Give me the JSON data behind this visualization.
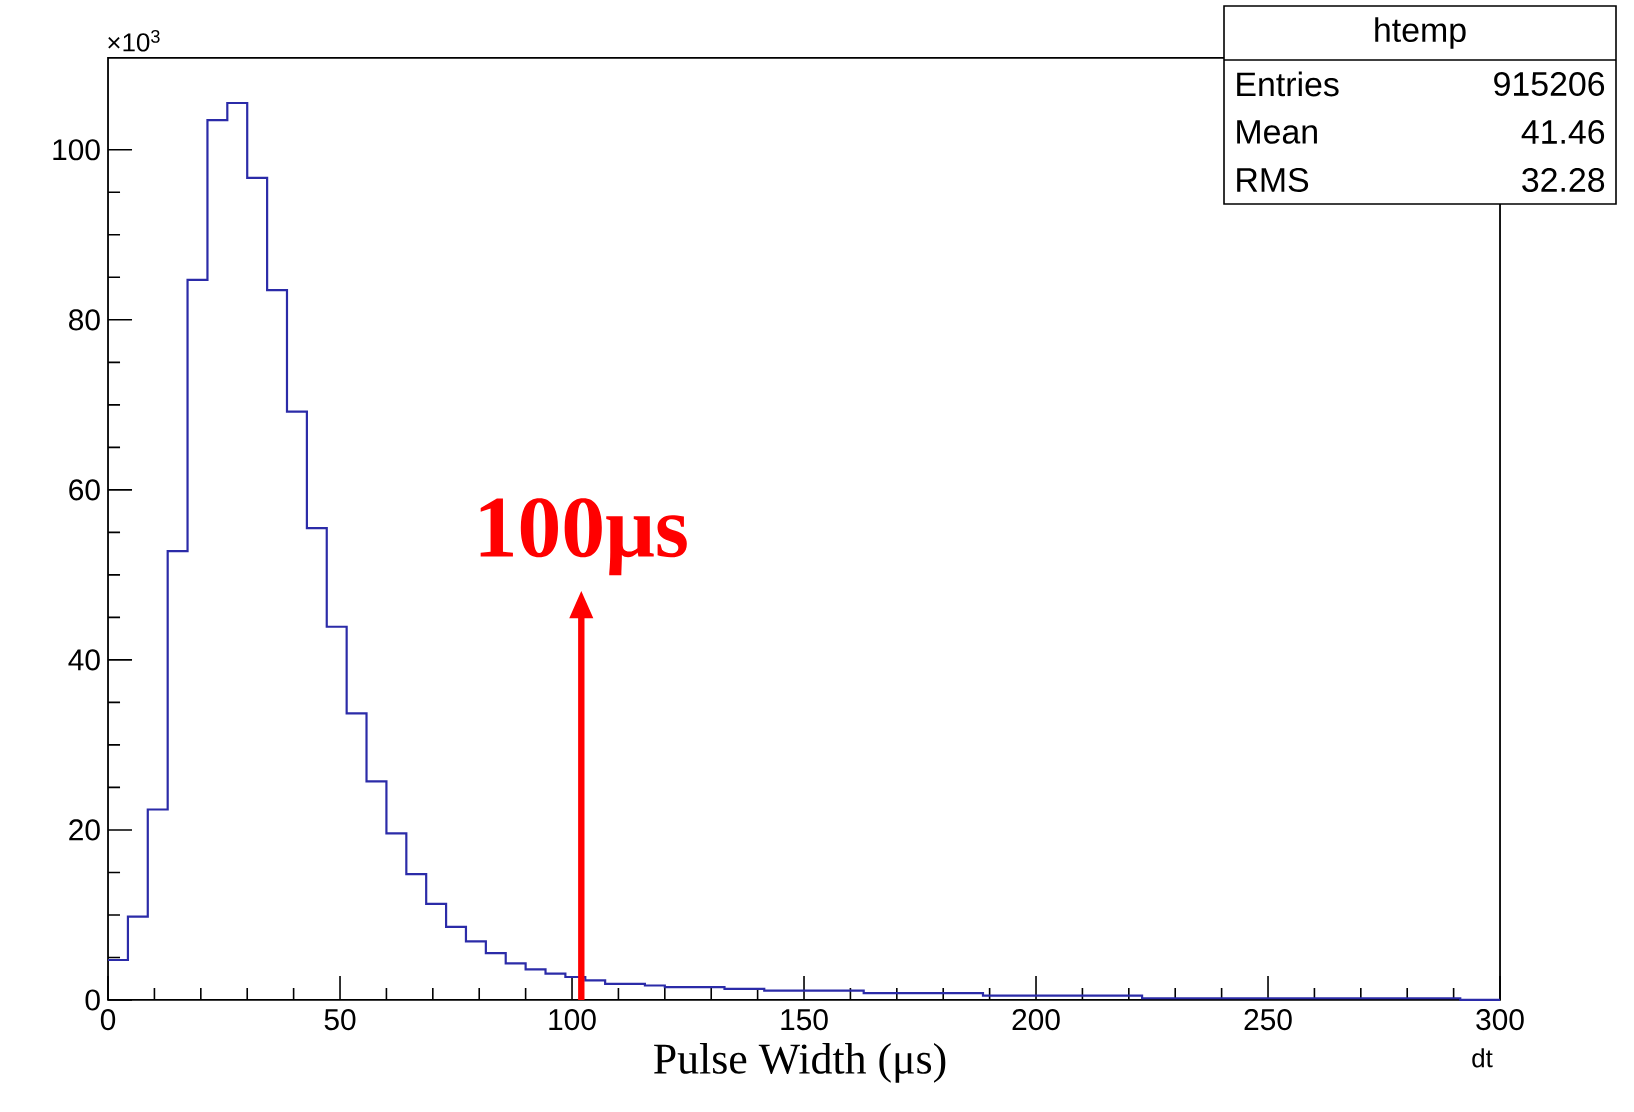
{
  "chart_data": {
    "type": "histogram",
    "xlabel": "Pulse Width (μs)",
    "color": "#2b2ba8",
    "bins": [
      0,
      4.29,
      8.57,
      12.86,
      17.14,
      21.43,
      25.71,
      30,
      34.29,
      38.57,
      42.86,
      47.14,
      51.43,
      55.71,
      60,
      64.29,
      68.57,
      72.86,
      77.14,
      81.43,
      85.71,
      90,
      94.29,
      98.57,
      102.86,
      107.14,
      111.43,
      115.71,
      120,
      124.29,
      128.57,
      132.86,
      137.14,
      141.43,
      145.71,
      150,
      154.29,
      158.57,
      162.86,
      167.14,
      171.43,
      175.71,
      180,
      184.29,
      188.57,
      192.86,
      197.14,
      201.43,
      205.71,
      210,
      214.29,
      218.57,
      222.86,
      227.14,
      231.43,
      235.71,
      240,
      244.29,
      248.57,
      252.86,
      257.14,
      261.43,
      265.71,
      270,
      274.29,
      278.57,
      282.86,
      287.14,
      291.43,
      295.71,
      300
    ],
    "values": [
      4.7,
      9.8,
      22.4,
      52.8,
      84.7,
      103.5,
      105.5,
      96.7,
      83.5,
      69.2,
      55.5,
      43.9,
      33.7,
      25.7,
      19.6,
      14.8,
      11.3,
      8.6,
      6.9,
      5.5,
      4.3,
      3.6,
      3.1,
      2.7,
      2.3,
      1.9,
      1.9,
      1.7,
      1.5,
      1.5,
      1.5,
      1.3,
      1.3,
      1.1,
      1.1,
      1.1,
      1.1,
      1.1,
      0.8,
      0.8,
      0.8,
      0.8,
      0.8,
      0.8,
      0.5,
      0.5,
      0.5,
      0.5,
      0.5,
      0.5,
      0.5,
      0.5,
      0.2,
      0.2,
      0.2,
      0.2,
      0.2,
      0.2,
      0.2,
      0.2,
      0.2,
      0.2,
      0.2,
      0.2,
      0.2,
      0.2,
      0.2,
      0.2,
      0,
      0
    ],
    "xlim": [
      0,
      300
    ],
    "ylim": [
      0,
      110.8
    ],
    "xticks": [
      0,
      50,
      100,
      150,
      200,
      250,
      300
    ],
    "yticks": [
      0,
      20,
      40,
      60,
      80,
      100
    ],
    "grid": false,
    "ref_lines": [
      {
        "axis": "x",
        "value": 102,
        "label": "100μs",
        "color": "#ff0000"
      }
    ],
    "annotations": [
      "×10$^{3}$",
      "dt",
      "htemp",
      "Entries",
      "915206",
      "Mean",
      "41.46",
      "RMS",
      "32.28"
    ]
  }
}
